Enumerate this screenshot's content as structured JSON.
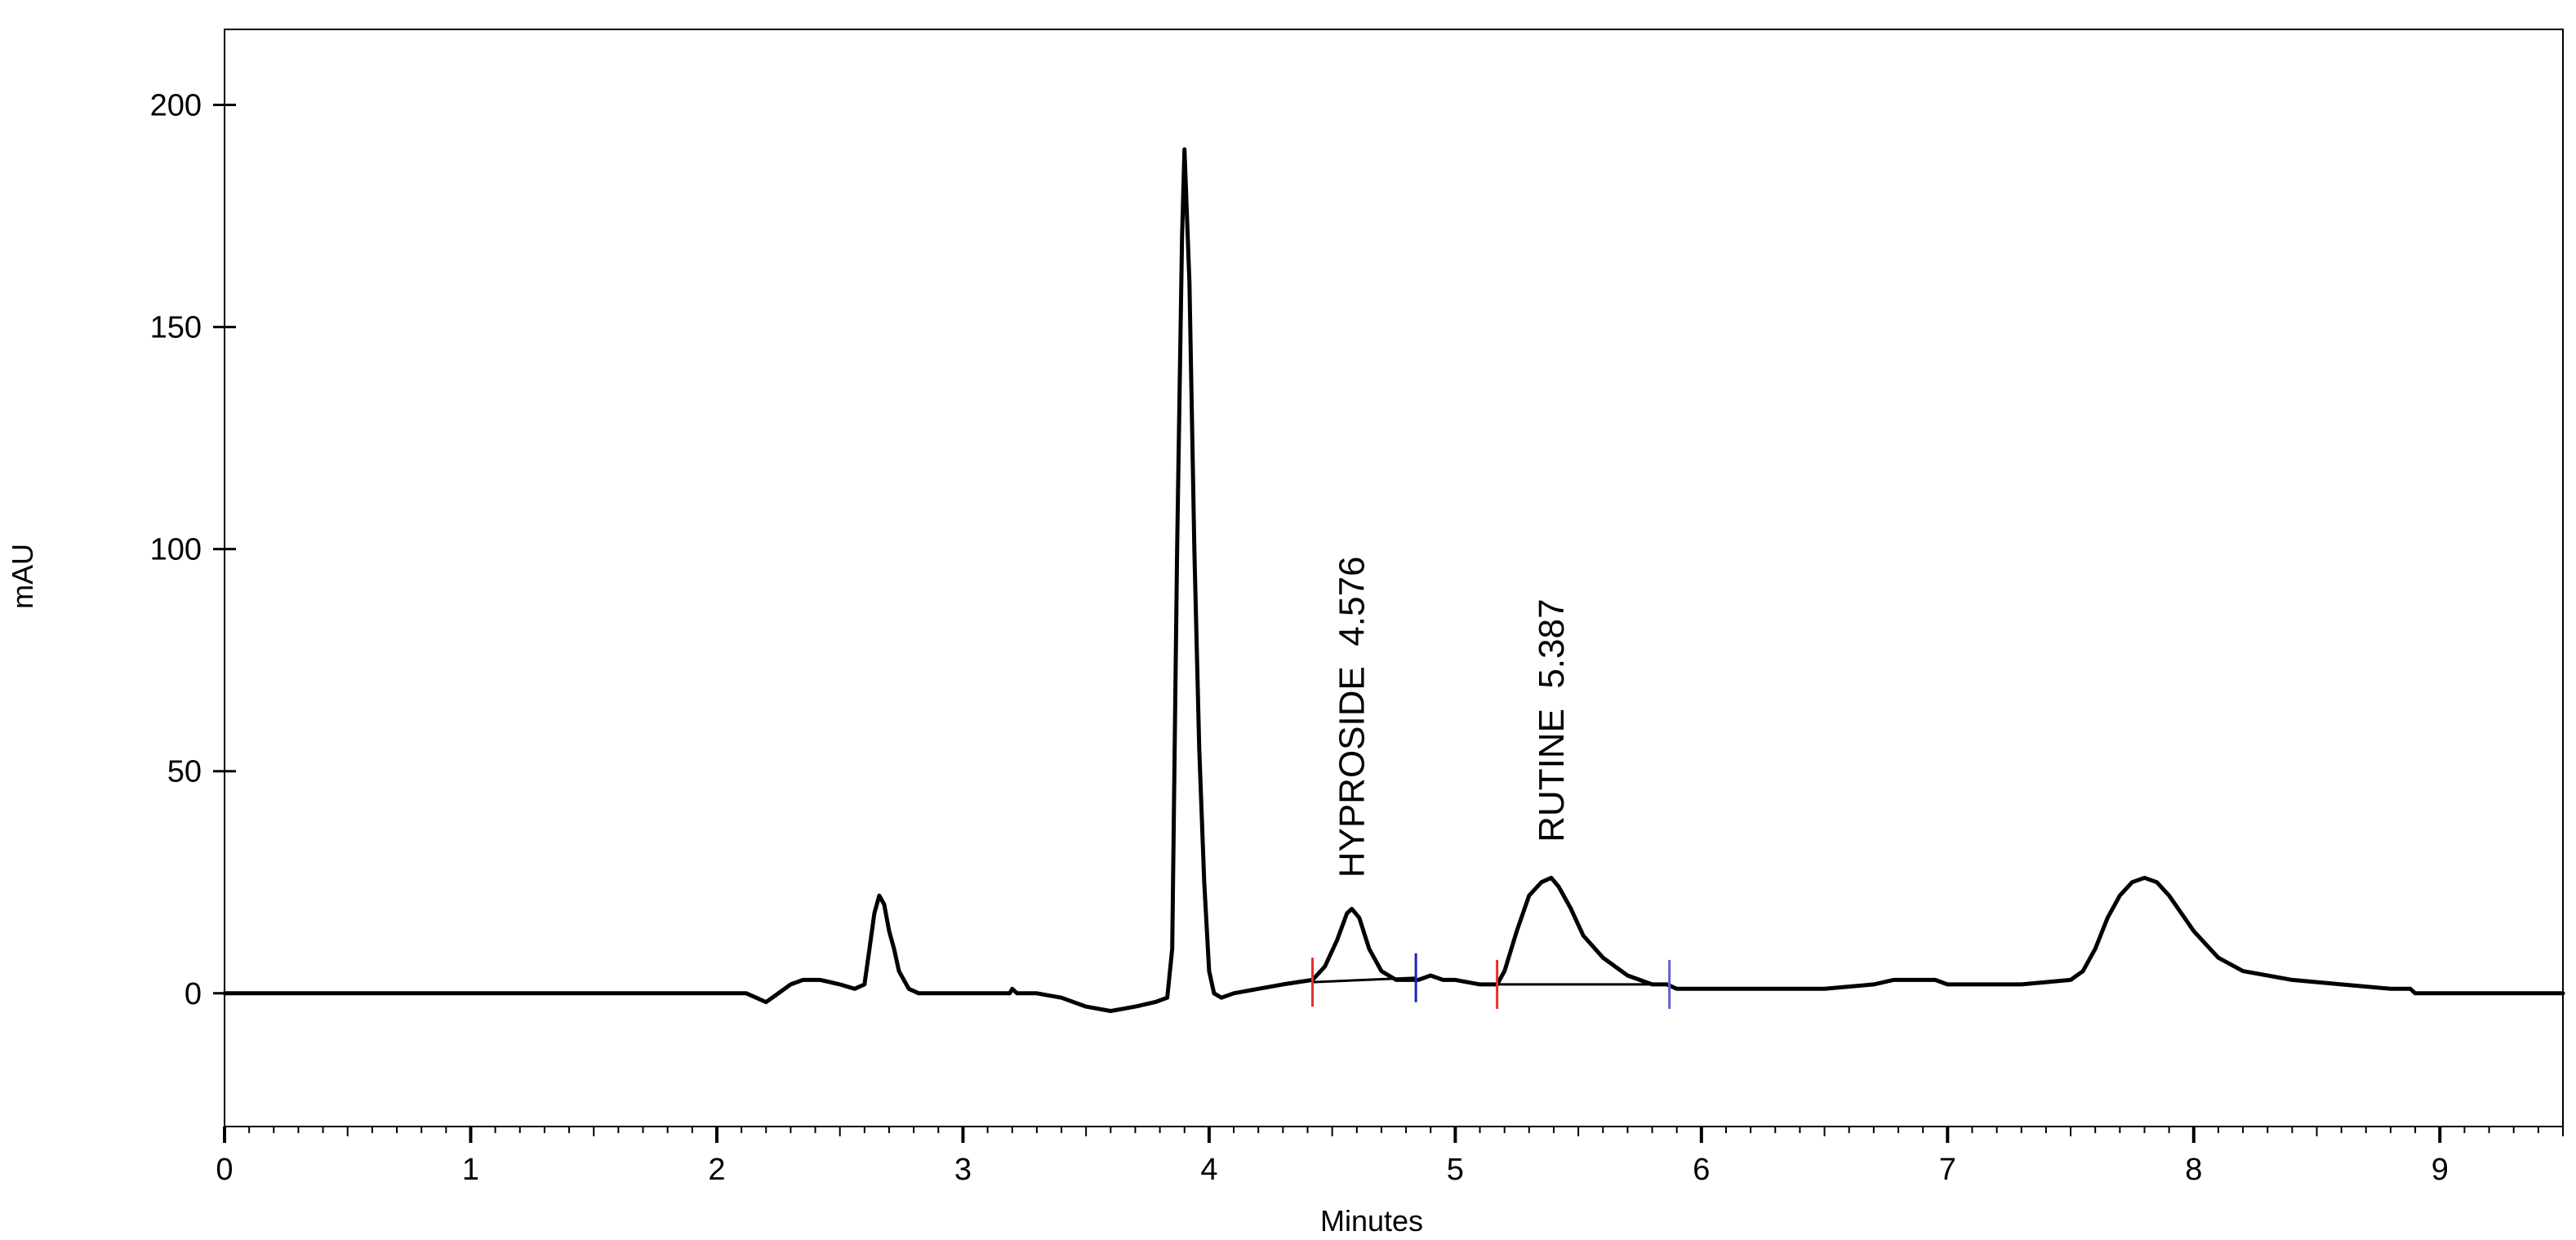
{
  "chart_data": {
    "type": "line",
    "title": "",
    "xlabel": "Minutes",
    "ylabel": "mAU",
    "xlim": [
      0,
      9.5
    ],
    "ylim": [
      -30,
      217
    ],
    "xticks": [
      0,
      1,
      2,
      3,
      4,
      5,
      6,
      7,
      8,
      9
    ],
    "yticks": [
      0,
      50,
      100,
      150,
      200
    ],
    "grid": false,
    "legend": "none",
    "series": [
      {
        "color": "#000000",
        "x": [
          0,
          1,
          2,
          2.12,
          2.16,
          2.2,
          2.25,
          2.3,
          2.35,
          2.42,
          2.5,
          2.56,
          2.6,
          2.62,
          2.64,
          2.66,
          2.68,
          2.7,
          2.72,
          2.74,
          2.78,
          2.82,
          2.87,
          2.95,
          3.1,
          3.19,
          3.2,
          3.22,
          3.3,
          3.4,
          3.5,
          3.6,
          3.7,
          3.78,
          3.83,
          3.85,
          3.87,
          3.89,
          3.9,
          3.92,
          3.94,
          3.96,
          3.98,
          4.0,
          4.02,
          4.05,
          4.1,
          4.2,
          4.3,
          4.42,
          4.47,
          4.52,
          4.56,
          4.58,
          4.61,
          4.65,
          4.7,
          4.76,
          4.8,
          4.85,
          4.9,
          4.95,
          5.0,
          5.1,
          5.17,
          5.2,
          5.25,
          5.3,
          5.35,
          5.39,
          5.42,
          5.47,
          5.52,
          5.6,
          5.7,
          5.8,
          5.86,
          5.9,
          6.0,
          6.5,
          6.7,
          6.78,
          6.95,
          7.0,
          7.3,
          7.5,
          7.55,
          7.6,
          7.65,
          7.7,
          7.75,
          7.8,
          7.85,
          7.9,
          7.95,
          8.0,
          8.1,
          8.2,
          8.4,
          8.6,
          8.8,
          8.87,
          8.88,
          8.9,
          9.0,
          9.5
        ],
        "y": [
          0,
          0,
          0,
          0,
          -1,
          -2,
          0,
          2,
          3,
          3,
          2,
          1,
          2,
          10,
          18,
          22,
          20,
          14,
          10,
          5,
          1,
          0,
          0,
          0,
          0,
          0,
          1,
          0,
          0,
          -1,
          -3,
          -4,
          -3,
          -2,
          -1,
          10,
          100,
          170,
          190,
          160,
          100,
          55,
          25,
          5,
          0,
          -1,
          0,
          1,
          2,
          3,
          6,
          12,
          18,
          19,
          17,
          10,
          5,
          3,
          3,
          3,
          4,
          3,
          3,
          2,
          2,
          5,
          14,
          22,
          25,
          26,
          24,
          19,
          13,
          8,
          4,
          2,
          2,
          1,
          1,
          1,
          2,
          3,
          3,
          2,
          2,
          3,
          5,
          10,
          17,
          22,
          25,
          26,
          25,
          22,
          18,
          14,
          8,
          5,
          3,
          2,
          1,
          1,
          1,
          0,
          0,
          0
        ]
      }
    ],
    "baselines": [
      {
        "x": [
          4.42,
          4.84
        ],
        "y": [
          2.5,
          3.5
        ]
      },
      {
        "x": [
          5.17,
          5.87
        ],
        "y": [
          2,
          2
        ]
      }
    ],
    "integration_markers": [
      {
        "x": 4.42,
        "y": 2.5,
        "color": "#e03030"
      },
      {
        "x": 4.84,
        "y": 3.5,
        "color": "#2020c0"
      },
      {
        "x": 5.17,
        "y": 2,
        "color": "#e03030"
      },
      {
        "x": 5.87,
        "y": 2,
        "color": "#6060d0"
      }
    ],
    "annotations": [
      {
        "text": "HYPROSIDE  4.576",
        "x": 4.576,
        "y": 26
      },
      {
        "text": "RUTINE  5.387",
        "x": 5.387,
        "y": 34
      }
    ]
  }
}
